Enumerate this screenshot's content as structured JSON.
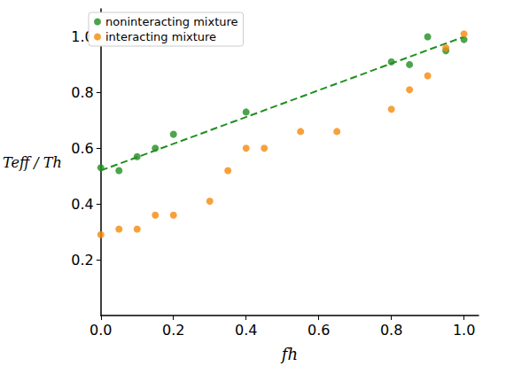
{
  "chart_data": {
    "type": "scatter",
    "xlabel": "fh",
    "ylabel": "Teff / Th",
    "xlim": [
      0,
      1.04
    ],
    "ylim": [
      0,
      1.1
    ],
    "xticks": [
      {
        "value": 0,
        "label": "0.0"
      },
      0.2,
      0.4,
      0.6,
      0.8,
      {
        "value": 1,
        "label": "1.0"
      }
    ],
    "yticks": [
      0.2,
      0.4,
      0.6,
      0.8,
      {
        "value": 1,
        "label": "1.0"
      }
    ],
    "grid": false,
    "legend": "upper left",
    "series": [
      {
        "name": "noninteracting mixture",
        "color": "#1f8f1f",
        "marker": "circle",
        "x": [
          0,
          0.05,
          0.1,
          0.15,
          0.2,
          0.4,
          0.8,
          0.85,
          0.9,
          0.95,
          1.0
        ],
        "values": [
          0.53,
          0.52,
          0.57,
          0.6,
          0.65,
          0.73,
          0.91,
          0.9,
          1.0,
          0.95,
          0.99
        ]
      },
      {
        "name": "interacting mixture",
        "color": "#f58a0b",
        "marker": "circle",
        "x": [
          0,
          0.05,
          0.1,
          0.15,
          0.2,
          0.3,
          0.35,
          0.4,
          0.45,
          0.55,
          0.65,
          0.8,
          0.85,
          0.9,
          0.95,
          1.0
        ],
        "values": [
          0.29,
          0.31,
          0.31,
          0.36,
          0.36,
          0.41,
          0.52,
          0.6,
          0.6,
          0.66,
          0.66,
          0.74,
          0.81,
          0.86,
          0.96,
          1.01
        ]
      },
      {
        "type": "line",
        "color": "#1f8f1f",
        "line_style": "dashed",
        "x": [
          0,
          1.0
        ],
        "values": [
          0.52,
          1.0
        ]
      }
    ]
  }
}
